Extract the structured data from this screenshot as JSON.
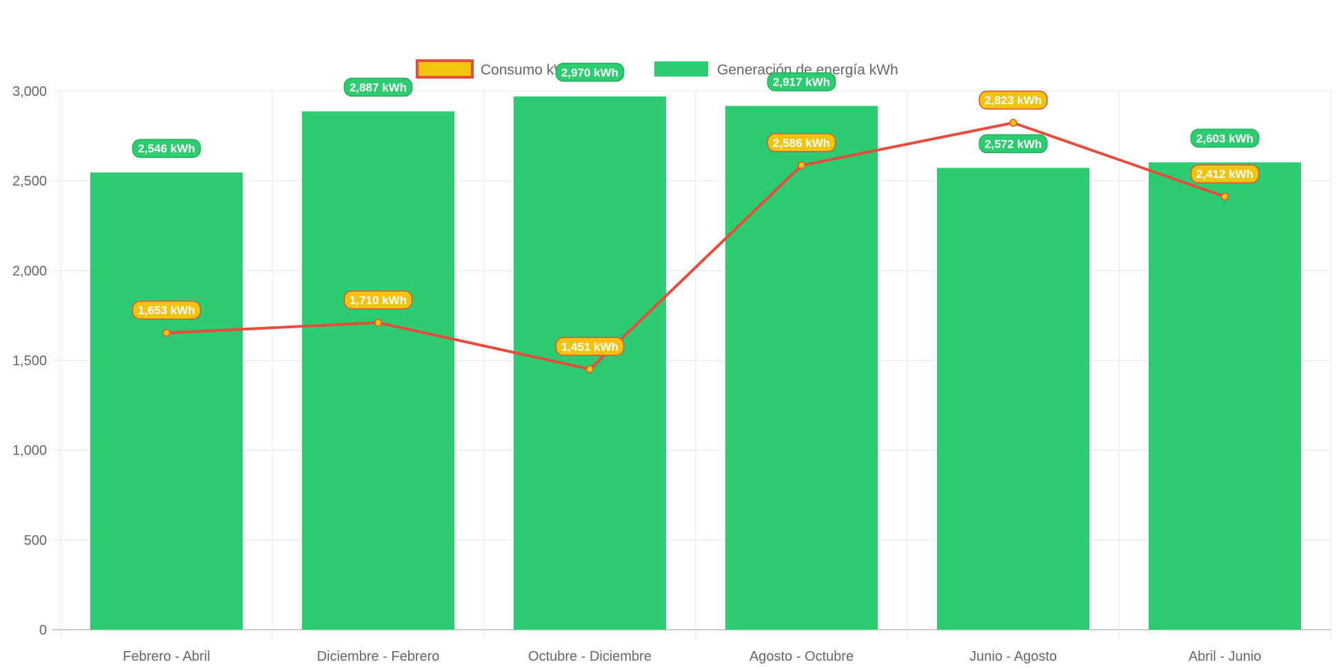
{
  "chart_data": {
    "type": "bar",
    "categories": [
      "Febrero - Abril",
      "Diciembre - Febrero",
      "Octubre - Diciembre",
      "Agosto - Octubre",
      "Junio - Agosto",
      "Abril - Junio"
    ],
    "series": [
      {
        "name": "Consumo kWh",
        "type": "line",
        "values": [
          1653,
          1710,
          1451,
          2586,
          2823,
          2412
        ],
        "labels": [
          "1,653 kWh",
          "1,710 kWh",
          "1,451 kWh",
          "2,586 kWh",
          "2,823 kWh",
          "2,412 kWh"
        ],
        "color": "#e74c3c",
        "fill": "#f1c40f"
      },
      {
        "name": "Generación de energía kWh",
        "type": "bar",
        "values": [
          2546,
          2887,
          2970,
          2917,
          2572,
          2603
        ],
        "labels": [
          "2,546 kWh",
          "2,887 kWh",
          "2,970 kWh",
          "2,917 kWh",
          "2,572 kWh",
          "2,603 kWh"
        ],
        "color": "#2ecc71",
        "label_bg": "#27ae60"
      }
    ],
    "yticks": [
      "0",
      "500",
      "1,000",
      "1,500",
      "2,000",
      "2,500",
      "3,000"
    ],
    "ylim": [
      0,
      3000
    ],
    "grid": true,
    "legend": "top-center",
    "title": "",
    "xlabel": "",
    "ylabel": ""
  }
}
